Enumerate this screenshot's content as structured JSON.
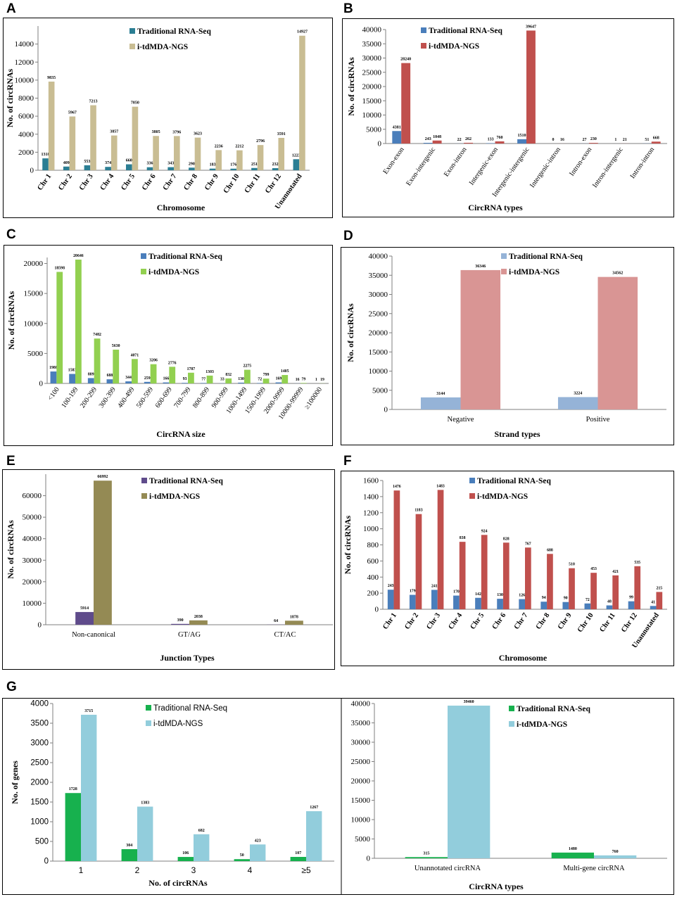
{
  "panel_letters": {
    "A": "A",
    "B": "B",
    "C": "C",
    "D": "D",
    "E": "E",
    "F": "F",
    "G": "G"
  },
  "colors": {
    "teal": "#2b7e93",
    "tan": "#c9bd93",
    "blue": "#4a7ebb",
    "red": "#c0504d",
    "green": "#92d050",
    "pink": "#d99594",
    "lightblue": "#95b3d7",
    "purple": "#5f4b8b",
    "olive": "#948a54",
    "brightgreen": "#17b14e",
    "cyan": "#92cddc"
  },
  "chart_data": [
    {
      "id": "A",
      "type": "bar",
      "categories": [
        "Chr 1",
        "Chr 2",
        "Chr 3",
        "Chr 4",
        "Chr 5",
        "Chr 6",
        "Chr 7",
        "Chr 8",
        "Chr 9",
        "Chr 10",
        "Chr 11",
        "Chr 12",
        "Unannotated"
      ],
      "series": [
        {
          "name": "Traditional RNA-Seq",
          "values": [
            1318,
            409,
            553,
            374,
            660,
            336,
            343,
            290,
            183,
            176,
            251,
            232,
            1223
          ]
        },
        {
          "name": "i-tdMDA-NGS",
          "values": [
            9835,
            5967,
            7213,
            3857,
            7050,
            3805,
            3796,
            3623,
            2236,
            2212,
            2796,
            3591,
            14927
          ]
        }
      ],
      "xlabel": "Chromosome",
      "ylabel": "No. of circRNAs",
      "ylim": [
        0,
        16000
      ],
      "yticks": [
        0,
        2000,
        4000,
        6000,
        8000,
        10000,
        12000,
        14000
      ]
    },
    {
      "id": "B",
      "type": "bar",
      "categories": [
        "Exon-exon",
        "Exon-intergenic",
        "Exon-intron",
        "Intergenic-exon",
        "Intergenic-intergenic",
        "Intergenic-intron",
        "Intron-exon",
        "Intron-intergenic",
        "Intron-intron"
      ],
      "series": [
        {
          "name": "Traditional RNA-Seq",
          "values": [
            4381,
            243,
            22,
            133,
            1510,
            0,
            27,
            1,
            51
          ]
        },
        {
          "name": "i-tdMDA-NGS",
          "values": [
            28240,
            1048,
            262,
            760,
            39647,
            16,
            230,
            21,
            668
          ]
        }
      ],
      "xlabel": "CircRNA types",
      "ylabel": "No. of circRNAs",
      "ylim": [
        0,
        40000
      ],
      "yticks": [
        0,
        5000,
        10000,
        15000,
        20000,
        25000,
        30000,
        35000,
        40000
      ]
    },
    {
      "id": "C",
      "type": "bar",
      "categories": [
        "<100",
        "100-199",
        "200-299",
        "300-399",
        "400-499",
        "500-599",
        "600-699",
        "700-799",
        "800-899",
        "900-999",
        "1000-1499",
        "1500-1999",
        "2000-9999",
        "10000-99999",
        "≥100000"
      ],
      "series": [
        {
          "name": "Traditional RNA-Seq",
          "values": [
            1988,
            1583,
            889,
            688,
            344,
            259,
            166,
            93,
            77,
            33,
            130,
            72,
            169,
            16,
            1
          ]
        },
        {
          "name": "i-tdMDA-NGS",
          "values": [
            18598,
            20646,
            7482,
            5630,
            4071,
            3206,
            2776,
            1787,
            1303,
            832,
            2275,
            799,
            1405,
            79,
            19
          ]
        }
      ],
      "bar_labels": [
        [
          "1988",
          "1583",
          "889",
          "688",
          "344",
          "259",
          "166",
          "93",
          "77",
          "33",
          "130",
          "72",
          "169",
          "16",
          "1"
        ],
        [
          "18598",
          "20646",
          "7482",
          "5630",
          "4071",
          "3206",
          "2776",
          "1787",
          "1303",
          "832",
          "2275",
          "799",
          "1405",
          "79",
          "19"
        ]
      ],
      "xlabel": "CircRNA size",
      "ylabel": "No. of circRNAs",
      "ylim": [
        0,
        21000
      ],
      "yticks": [
        0,
        5000,
        10000,
        15000,
        20000
      ]
    },
    {
      "id": "D",
      "type": "bar",
      "categories": [
        "Negative",
        "Positive"
      ],
      "series": [
        {
          "name": "Traditional RNA-Seq",
          "values": [
            3144,
            3224
          ]
        },
        {
          "name": "i-tdMDA-NGS",
          "values": [
            36346,
            34562
          ]
        }
      ],
      "xlabel": "Strand types",
      "ylabel": "No. of circRNAs",
      "ylim": [
        0,
        40000
      ],
      "yticks": [
        0,
        5000,
        10000,
        15000,
        20000,
        25000,
        30000,
        35000,
        40000
      ]
    },
    {
      "id": "E",
      "type": "bar",
      "categories": [
        "Non-canonical",
        "GT/AG",
        "CT/AC"
      ],
      "series": [
        {
          "name": "Traditional RNA-Seq",
          "values": [
            5914,
            390,
            64
          ]
        },
        {
          "name": "i-tdMDA-NGS",
          "values": [
            66992,
            2038,
            1878
          ]
        }
      ],
      "xlabel": "Junction Types",
      "ylabel": "No. of circRNAs",
      "ylim": [
        0,
        70000
      ],
      "yticks": [
        0,
        10000,
        20000,
        30000,
        40000,
        50000,
        60000
      ]
    },
    {
      "id": "F",
      "type": "bar",
      "categories": [
        "Chr 1",
        "Chr 2",
        "Chr 3",
        "Chr 4",
        "Chr 5",
        "Chr 6",
        "Chr 7",
        "Chr 8",
        "Chr 9",
        "Chr 10",
        "Chr 11",
        "Chr 12",
        "Unannotated"
      ],
      "series": [
        {
          "name": "Traditional RNA-Seq",
          "values": [
            243,
            179,
            241,
            170,
            142,
            130,
            126,
            94,
            90,
            72,
            48,
            99,
            41
          ]
        },
        {
          "name": "i-tdMDA-NGS",
          "values": [
            1476,
            1183,
            1483,
            838,
            924,
            828,
            767,
            688,
            510,
            453,
            421,
            535,
            215
          ]
        }
      ],
      "xlabel": "Chromosome",
      "ylabel": "No. of circRNAs",
      "ylim": [
        0,
        1600
      ],
      "yticks": [
        0,
        200,
        400,
        600,
        800,
        1000,
        1200,
        1400,
        1600
      ]
    },
    {
      "id": "G1",
      "type": "bar",
      "categories": [
        "1",
        "2",
        "3",
        "4",
        "≥5"
      ],
      "series": [
        {
          "name": "Traditional RNA-Seq",
          "values": [
            1728,
            304,
            106,
            50,
            107
          ]
        },
        {
          "name": "i-tdMDA-NGS",
          "values": [
            3715,
            1383,
            682,
            423,
            1267
          ]
        }
      ],
      "xlabel": "No. of circRNAs",
      "ylabel": "No. of genes",
      "ylim": [
        0,
        4000
      ],
      "yticks": [
        0,
        500,
        1000,
        1500,
        2000,
        2500,
        3000,
        3500,
        4000
      ]
    },
    {
      "id": "G2",
      "type": "bar",
      "categories": [
        "Unannotated circRNA",
        "Multi-gene circRNA"
      ],
      "series": [
        {
          "name": "Traditional RNA-Seq",
          "values": [
            315,
            1480
          ]
        },
        {
          "name": "i-tdMDA-NGS",
          "values": [
            39460,
            760
          ]
        }
      ],
      "xlabel": "CircRNA types",
      "ylabel": "",
      "ylim": [
        0,
        40000
      ],
      "yticks": [
        0,
        5000,
        10000,
        15000,
        20000,
        25000,
        30000,
        35000,
        40000
      ]
    }
  ]
}
